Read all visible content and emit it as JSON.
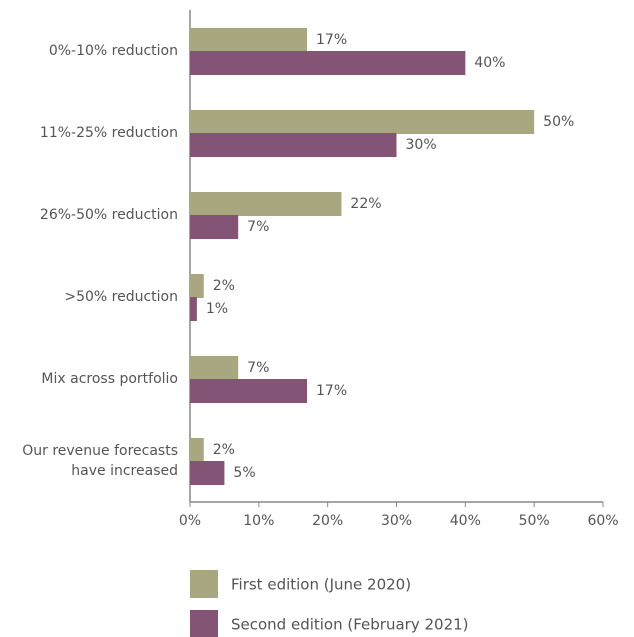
{
  "chart_data": {
    "type": "barh",
    "categories": [
      "0%-10% reduction",
      "11%-25% reduction",
      "26%-50% reduction",
      ">50% reduction",
      "Mix across portfolio",
      "Our revenue forecasts have increased"
    ],
    "series": [
      {
        "name": "First edition (June 2020)",
        "color": "#a9a77f",
        "values": [
          17,
          50,
          22,
          2,
          7,
          2
        ],
        "value_labels": [
          "17%",
          "50%",
          "22%",
          "2%",
          "7%",
          "2%"
        ]
      },
      {
        "name": "Second edition (February 2021)",
        "color": "#835476",
        "values": [
          40,
          30,
          7,
          1,
          17,
          5
        ],
        "value_labels": [
          "40%",
          "30%",
          "7%",
          "1%",
          "17%",
          "5%"
        ]
      }
    ],
    "xlim": [
      0,
      60
    ],
    "xticks": [
      {
        "value": 0,
        "label": "0%"
      },
      {
        "value": 10,
        "label": "10%"
      },
      {
        "value": 20,
        "label": "20%"
      },
      {
        "value": 30,
        "label": "30%"
      },
      {
        "value": 40,
        "label": "40%"
      },
      {
        "value": 50,
        "label": "50%"
      },
      {
        "value": 60,
        "label": "60%"
      }
    ]
  }
}
